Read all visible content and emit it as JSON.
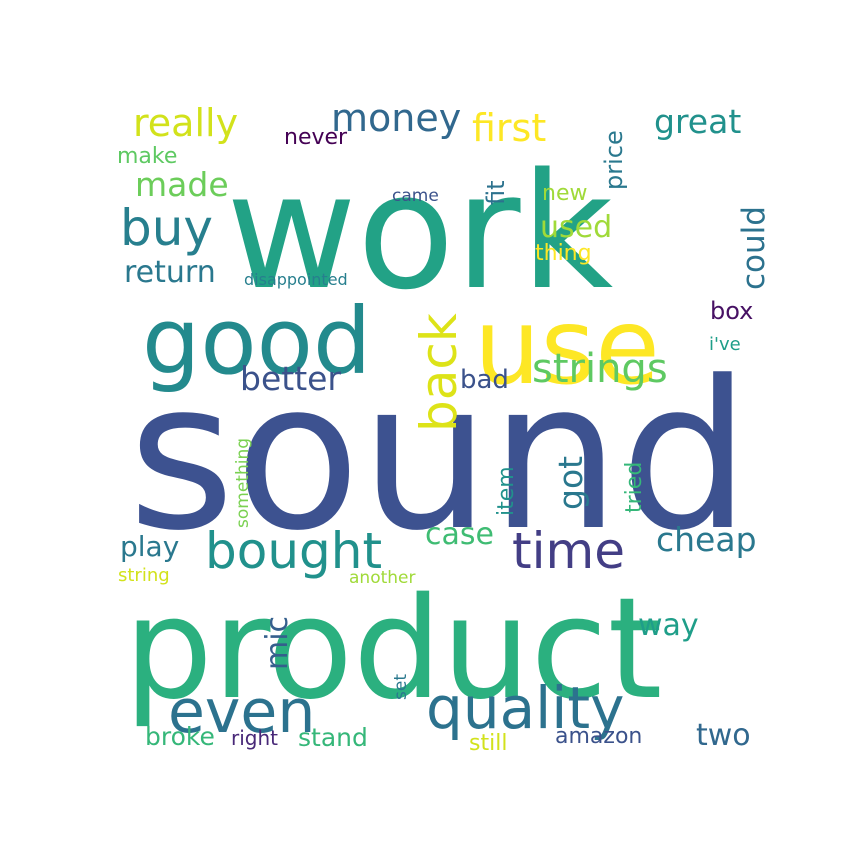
{
  "cloud": {
    "words": [
      {
        "text": "sound",
        "color": "#3d5290"
      },
      {
        "text": "work",
        "color": "#22a286"
      },
      {
        "text": "product",
        "color": "#2bb07f"
      },
      {
        "text": "use",
        "color": "#fde725"
      },
      {
        "text": "good",
        "color": "#238a8d"
      },
      {
        "text": "time",
        "color": "#433e85"
      },
      {
        "text": "even",
        "color": "#2c728e"
      },
      {
        "text": "quality",
        "color": "#2c728e"
      },
      {
        "text": "bought",
        "color": "#21918c"
      },
      {
        "text": "buy",
        "color": "#277f8e"
      },
      {
        "text": "back",
        "color": "#dde318"
      },
      {
        "text": "strings",
        "color": "#5ec962"
      },
      {
        "text": "better",
        "color": "#3b528b"
      },
      {
        "text": "money",
        "color": "#31688e"
      },
      {
        "text": "really",
        "color": "#d2e21b"
      },
      {
        "text": "first",
        "color": "#fde725"
      },
      {
        "text": "great",
        "color": "#21918c"
      },
      {
        "text": "made",
        "color": "#6ccd5a"
      },
      {
        "text": "return",
        "color": "#2a788e"
      },
      {
        "text": "used",
        "color": "#a0da39"
      },
      {
        "text": "could",
        "color": "#2c728e"
      },
      {
        "text": "got",
        "color": "#2a788e"
      },
      {
        "text": "cheap",
        "color": "#2a788e"
      },
      {
        "text": "play",
        "color": "#2a788e"
      },
      {
        "text": "case",
        "color": "#3fbc73"
      },
      {
        "text": "way",
        "color": "#1f9e89"
      },
      {
        "text": "two",
        "color": "#31688e"
      },
      {
        "text": "mic",
        "color": "#355f8d"
      },
      {
        "text": "bad",
        "color": "#3b528b"
      },
      {
        "text": "box",
        "color": "#471164"
      },
      {
        "text": "stand",
        "color": "#35b779"
      },
      {
        "text": "broke",
        "color": "#35b779"
      },
      {
        "text": "amazon",
        "color": "#3b528b"
      },
      {
        "text": "still",
        "color": "#d2e21b"
      },
      {
        "text": "right",
        "color": "#482878"
      },
      {
        "text": "never",
        "color": "#440154"
      },
      {
        "text": "make",
        "color": "#5ec962"
      },
      {
        "text": "fit",
        "color": "#2c728e"
      },
      {
        "text": "price",
        "color": "#2a788e"
      },
      {
        "text": "new",
        "color": "#a0da39"
      },
      {
        "text": "thing",
        "color": "#fde725"
      },
      {
        "text": "came",
        "color": "#3b528b"
      },
      {
        "text": "disappointed",
        "color": "#277f8e"
      },
      {
        "text": "i've",
        "color": "#1f9e89"
      },
      {
        "text": "item",
        "color": "#21918c"
      },
      {
        "text": "tried",
        "color": "#35b779"
      },
      {
        "text": "something",
        "color": "#7ad151"
      },
      {
        "text": "string",
        "color": "#d2e21b"
      },
      {
        "text": "another",
        "color": "#a0da39"
      },
      {
        "text": "set",
        "color": "#2a788e"
      }
    ]
  }
}
